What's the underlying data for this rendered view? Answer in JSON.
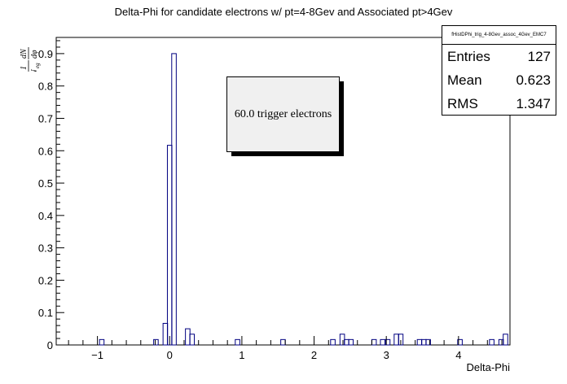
{
  "title": "Delta-Phi for candidate electrons w/ pt=4-8Gev and Associated pt>4Gev",
  "stats": {
    "name": "fHistDPhi_trig_4-8Gev_assoc_4Gev_EMC7",
    "entries_label": "Entries",
    "entries": "127",
    "mean_label": "Mean",
    "mean": "0.623",
    "rms_label": "RMS",
    "rms": "1.347"
  },
  "annotation": "60.0 trigger electrons",
  "colors": {
    "line": "#000080",
    "axis": "#000000"
  },
  "chart_data": {
    "type": "histogram",
    "title": "Delta-Phi for candidate electrons w/ pt=4-8Gev and Associated pt>4Gev",
    "xlabel": "Delta-Phi",
    "ylabel": "1/N_eg dN/dphi",
    "xlim": [
      -1.5708,
      4.7124
    ],
    "ylim": [
      0,
      0.95
    ],
    "xticks": [
      -1,
      0,
      1,
      2,
      3,
      4
    ],
    "yticks": [
      0,
      0.1,
      0.2,
      0.3,
      0.4,
      0.5,
      0.6,
      0.7,
      0.8,
      0.9
    ],
    "bin_width": 0.0628,
    "bins": [
      {
        "x": -0.94,
        "y": 0.0167
      },
      {
        "x": -0.19,
        "y": 0.0167
      },
      {
        "x": -0.06,
        "y": 0.0667
      },
      {
        "x": 0.0,
        "y": 0.6167
      },
      {
        "x": 0.06,
        "y": 0.9
      },
      {
        "x": 0.25,
        "y": 0.05
      },
      {
        "x": 0.31,
        "y": 0.0333
      },
      {
        "x": 0.94,
        "y": 0.0167
      },
      {
        "x": 1.57,
        "y": 0.0167
      },
      {
        "x": 2.26,
        "y": 0.0167
      },
      {
        "x": 2.39,
        "y": 0.0333
      },
      {
        "x": 2.45,
        "y": 0.0167
      },
      {
        "x": 2.51,
        "y": 0.0167
      },
      {
        "x": 2.83,
        "y": 0.0167
      },
      {
        "x": 2.95,
        "y": 0.0167
      },
      {
        "x": 3.02,
        "y": 0.0167
      },
      {
        "x": 3.14,
        "y": 0.0333
      },
      {
        "x": 3.2,
        "y": 0.0333
      },
      {
        "x": 3.46,
        "y": 0.0167
      },
      {
        "x": 3.52,
        "y": 0.0167
      },
      {
        "x": 3.58,
        "y": 0.0167
      },
      {
        "x": 4.02,
        "y": 0.0167
      },
      {
        "x": 4.46,
        "y": 0.0167
      },
      {
        "x": 4.59,
        "y": 0.0167
      },
      {
        "x": 4.65,
        "y": 0.0333
      }
    ]
  }
}
